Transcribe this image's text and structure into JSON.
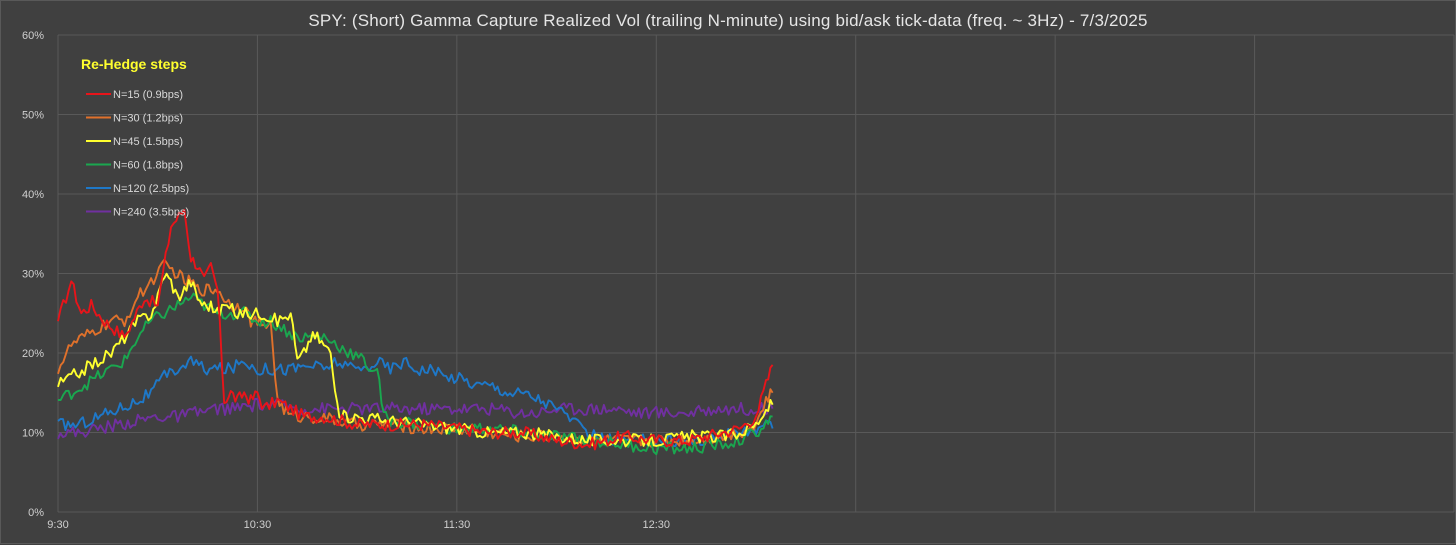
{
  "chart_data": {
    "type": "line",
    "title": "SPY: (Short) Gamma Capture Realized Vol (trailing N-minute) using bid/ask tick-data (freq. ~ 3Hz) - 7/3/2025",
    "xlabel": "",
    "ylabel": "",
    "x_tick_labels": [
      "9:30",
      "10:30",
      "11:30",
      "12:30"
    ],
    "x_tick_minutes": [
      0,
      60,
      120,
      180
    ],
    "x_range_minutes": [
      0,
      420
    ],
    "y_tick_labels": [
      "0%",
      "10%",
      "20%",
      "30%",
      "40%",
      "50%",
      "60%"
    ],
    "ylim": [
      0,
      60
    ],
    "grid": true,
    "legend": {
      "title": "Re-Hedge steps",
      "placement": "top-left"
    },
    "series": [
      {
        "name": "N=15 (0.9bps)",
        "color": "#e8141a",
        "x": [
          0,
          4,
          7,
          10,
          14,
          20,
          26,
          30,
          34,
          38,
          40,
          42,
          44,
          46,
          48,
          50,
          52,
          54,
          56,
          58,
          60,
          62,
          66,
          70,
          74,
          80,
          90,
          100,
          110,
          120,
          130,
          140,
          150,
          160,
          170,
          180,
          190,
          200,
          205,
          210,
          213,
          215
        ],
        "y": [
          24,
          29,
          25,
          26,
          24,
          22,
          27,
          26,
          36,
          38,
          32,
          31,
          29,
          31,
          28,
          14,
          15,
          14,
          15,
          14,
          15,
          13,
          14,
          13,
          12,
          12,
          11,
          11,
          11,
          10.5,
          10,
          10,
          9,
          8.5,
          9.5,
          9,
          9,
          10,
          10.5,
          12,
          16,
          18.5
        ]
      },
      {
        "name": "N=30 (1.2bps)",
        "color": "#e0712b",
        "x": [
          0,
          4,
          8,
          12,
          16,
          20,
          24,
          28,
          32,
          36,
          38,
          40,
          42,
          44,
          46,
          48,
          50,
          52,
          54,
          56,
          58,
          60,
          62,
          64,
          66,
          68,
          70,
          76,
          84,
          90,
          100,
          110,
          120,
          130,
          140,
          150,
          160,
          170,
          180,
          190,
          200,
          205,
          210,
          213,
          215
        ],
        "y": [
          18,
          21,
          22,
          23,
          24,
          24,
          27,
          29,
          31,
          30,
          29,
          29,
          28,
          28,
          28,
          28,
          27,
          26,
          26,
          26,
          24,
          24,
          23,
          24,
          14,
          13,
          12,
          12,
          11.5,
          11,
          11,
          10.5,
          10.5,
          10,
          9.5,
          9.5,
          9,
          9,
          9,
          9,
          9.5,
          10,
          11,
          14,
          15
        ]
      },
      {
        "name": "N=45 (1.5bps)",
        "color": "#ffff2e",
        "x": [
          0,
          4,
          8,
          12,
          16,
          20,
          24,
          28,
          30,
          32,
          34,
          36,
          38,
          40,
          42,
          44,
          46,
          48,
          50,
          54,
          58,
          62,
          66,
          70,
          72,
          74,
          76,
          78,
          80,
          82,
          84,
          86,
          88,
          90,
          100,
          110,
          120,
          130,
          140,
          150,
          160,
          170,
          180,
          190,
          200,
          205,
          210,
          213,
          215
        ],
        "y": [
          16,
          17,
          18,
          19,
          20,
          22,
          24,
          25,
          27,
          30,
          29,
          27,
          28,
          29,
          27,
          26,
          26,
          25,
          26,
          25,
          25,
          25,
          24,
          25,
          19,
          20,
          22,
          22,
          21,
          20,
          13,
          12,
          12,
          12,
          11.5,
          11,
          10.5,
          10,
          10,
          9.5,
          9,
          9,
          9,
          9.5,
          9.5,
          10,
          11,
          13,
          13.5
        ]
      },
      {
        "name": "N=60 (1.8bps)",
        "color": "#1aa74f",
        "x": [
          0,
          4,
          8,
          12,
          16,
          20,
          24,
          28,
          32,
          36,
          40,
          44,
          48,
          52,
          56,
          60,
          64,
          68,
          72,
          76,
          80,
          84,
          88,
          92,
          94,
          96,
          98,
          100,
          110,
          120,
          130,
          140,
          150,
          160,
          170,
          180,
          190,
          200,
          205,
          210,
          213,
          215
        ],
        "y": [
          14,
          15,
          16,
          17,
          18,
          19,
          22,
          24,
          25,
          26,
          27,
          26,
          25,
          25,
          25,
          24,
          24,
          23,
          22,
          22,
          22,
          21,
          20,
          19,
          18,
          18,
          12,
          11.5,
          11,
          10.5,
          10.5,
          10,
          9.5,
          9,
          8.5,
          8,
          8,
          8.5,
          9,
          10,
          11,
          12
        ]
      },
      {
        "name": "N=120 (2.5bps)",
        "color": "#1e78c8",
        "x": [
          0,
          6,
          12,
          18,
          24,
          28,
          32,
          36,
          40,
          44,
          48,
          52,
          56,
          60,
          64,
          70,
          76,
          80,
          84,
          88,
          92,
          96,
          100,
          104,
          108,
          112,
          116,
          120,
          126,
          130,
          136,
          140,
          146,
          150,
          154,
          158,
          162,
          166,
          170,
          176,
          182,
          188,
          194,
          200,
          205,
          210,
          213,
          215
        ],
        "y": [
          11,
          11,
          12,
          13,
          14,
          15,
          17,
          18,
          19,
          18,
          18,
          18,
          19,
          18,
          18,
          18,
          18.5,
          18,
          19,
          18,
          18,
          19,
          18,
          19,
          18,
          18,
          17,
          17,
          16,
          16,
          15,
          15,
          14,
          13,
          12,
          10,
          9.5,
          9,
          9,
          9,
          9,
          9,
          9,
          9.5,
          10,
          10.5,
          11,
          10.5
        ]
      },
      {
        "name": "N=240 (3.5bps)",
        "color": "#7030a0",
        "x": [
          0,
          6,
          12,
          18,
          24,
          30,
          36,
          42,
          48,
          54,
          60,
          66,
          72,
          78,
          84,
          90,
          96,
          102,
          108,
          114,
          120,
          126,
          132,
          138,
          144,
          150,
          156,
          162,
          168,
          174,
          180,
          186,
          192,
          198,
          204,
          210,
          215
        ],
        "y": [
          10,
          10,
          10.5,
          11,
          11.5,
          12,
          12,
          12.5,
          13,
          13,
          13.5,
          13.5,
          13,
          13,
          13,
          13,
          13,
          13,
          13,
          13,
          13,
          13,
          13,
          12.5,
          12.5,
          13,
          13,
          13,
          13,
          12.5,
          12.5,
          12.5,
          12.5,
          13,
          13,
          13,
          13
        ]
      }
    ]
  }
}
